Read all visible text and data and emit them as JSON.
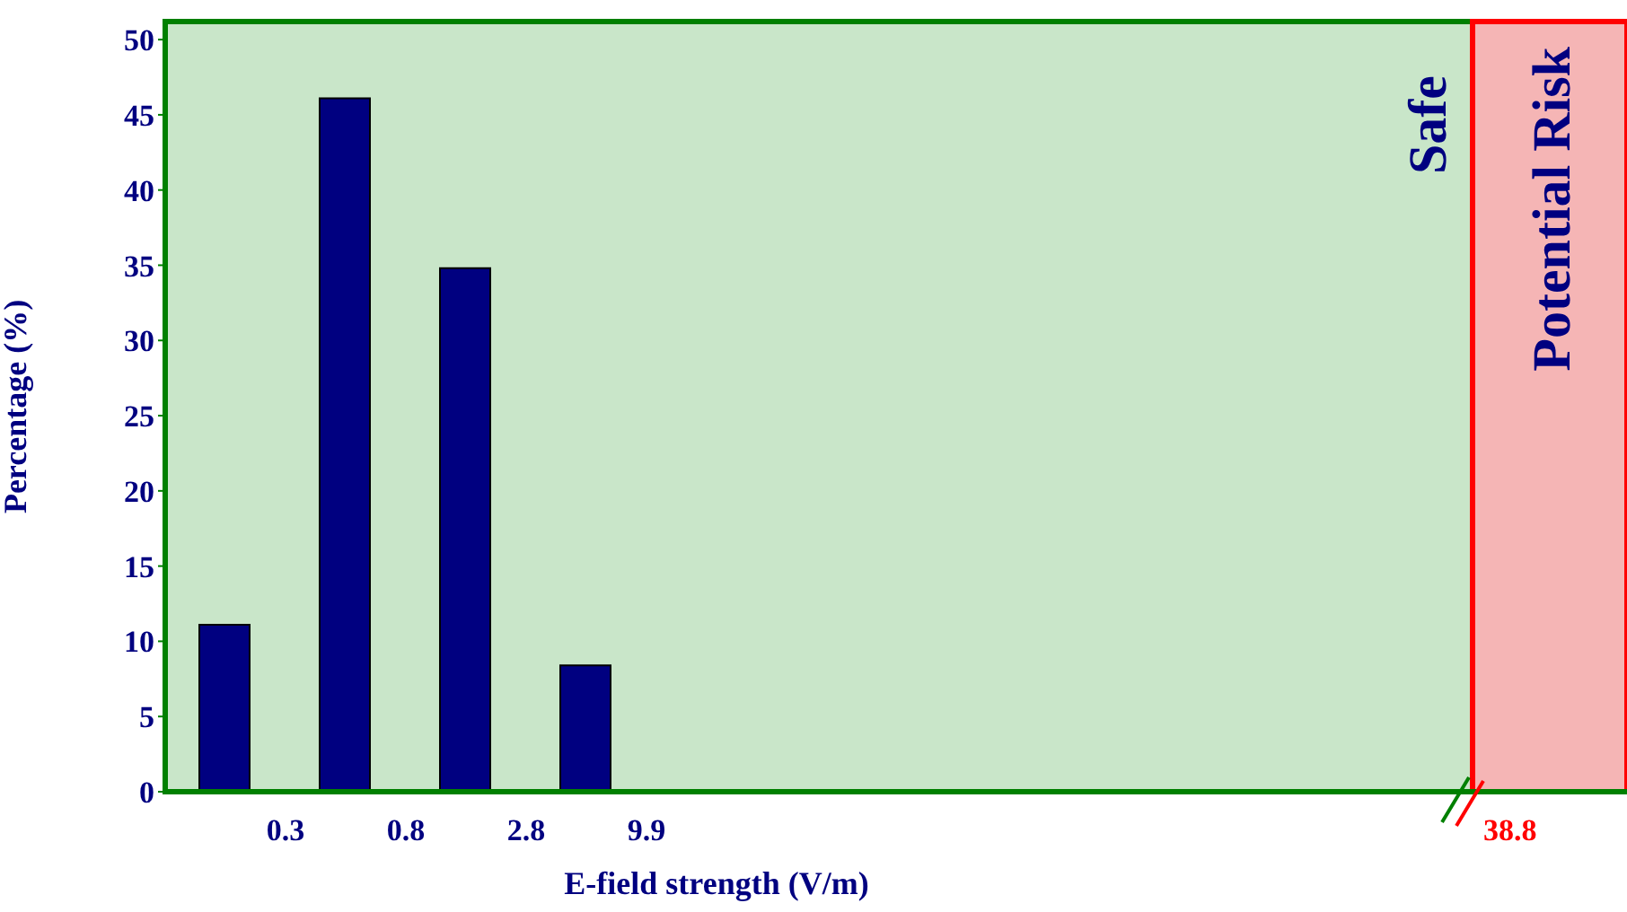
{
  "chart_data": {
    "type": "bar",
    "xlabel": "E-field strength (V/m)",
    "ylabel": "Percentage (%)",
    "categories": [
      null,
      null,
      null,
      null
    ],
    "values": [
      11.1,
      46.1,
      34.8,
      8.4
    ],
    "color": "#000080",
    "ylim": [
      0,
      51.2
    ],
    "yticks": [
      0,
      5,
      10,
      15,
      20,
      25,
      30,
      35,
      40,
      45,
      50
    ],
    "annotations": [
      "0.3",
      "0.8",
      "2.8",
      "9.9",
      "38.8",
      "Safe",
      "Potential Risk"
    ]
  }
}
